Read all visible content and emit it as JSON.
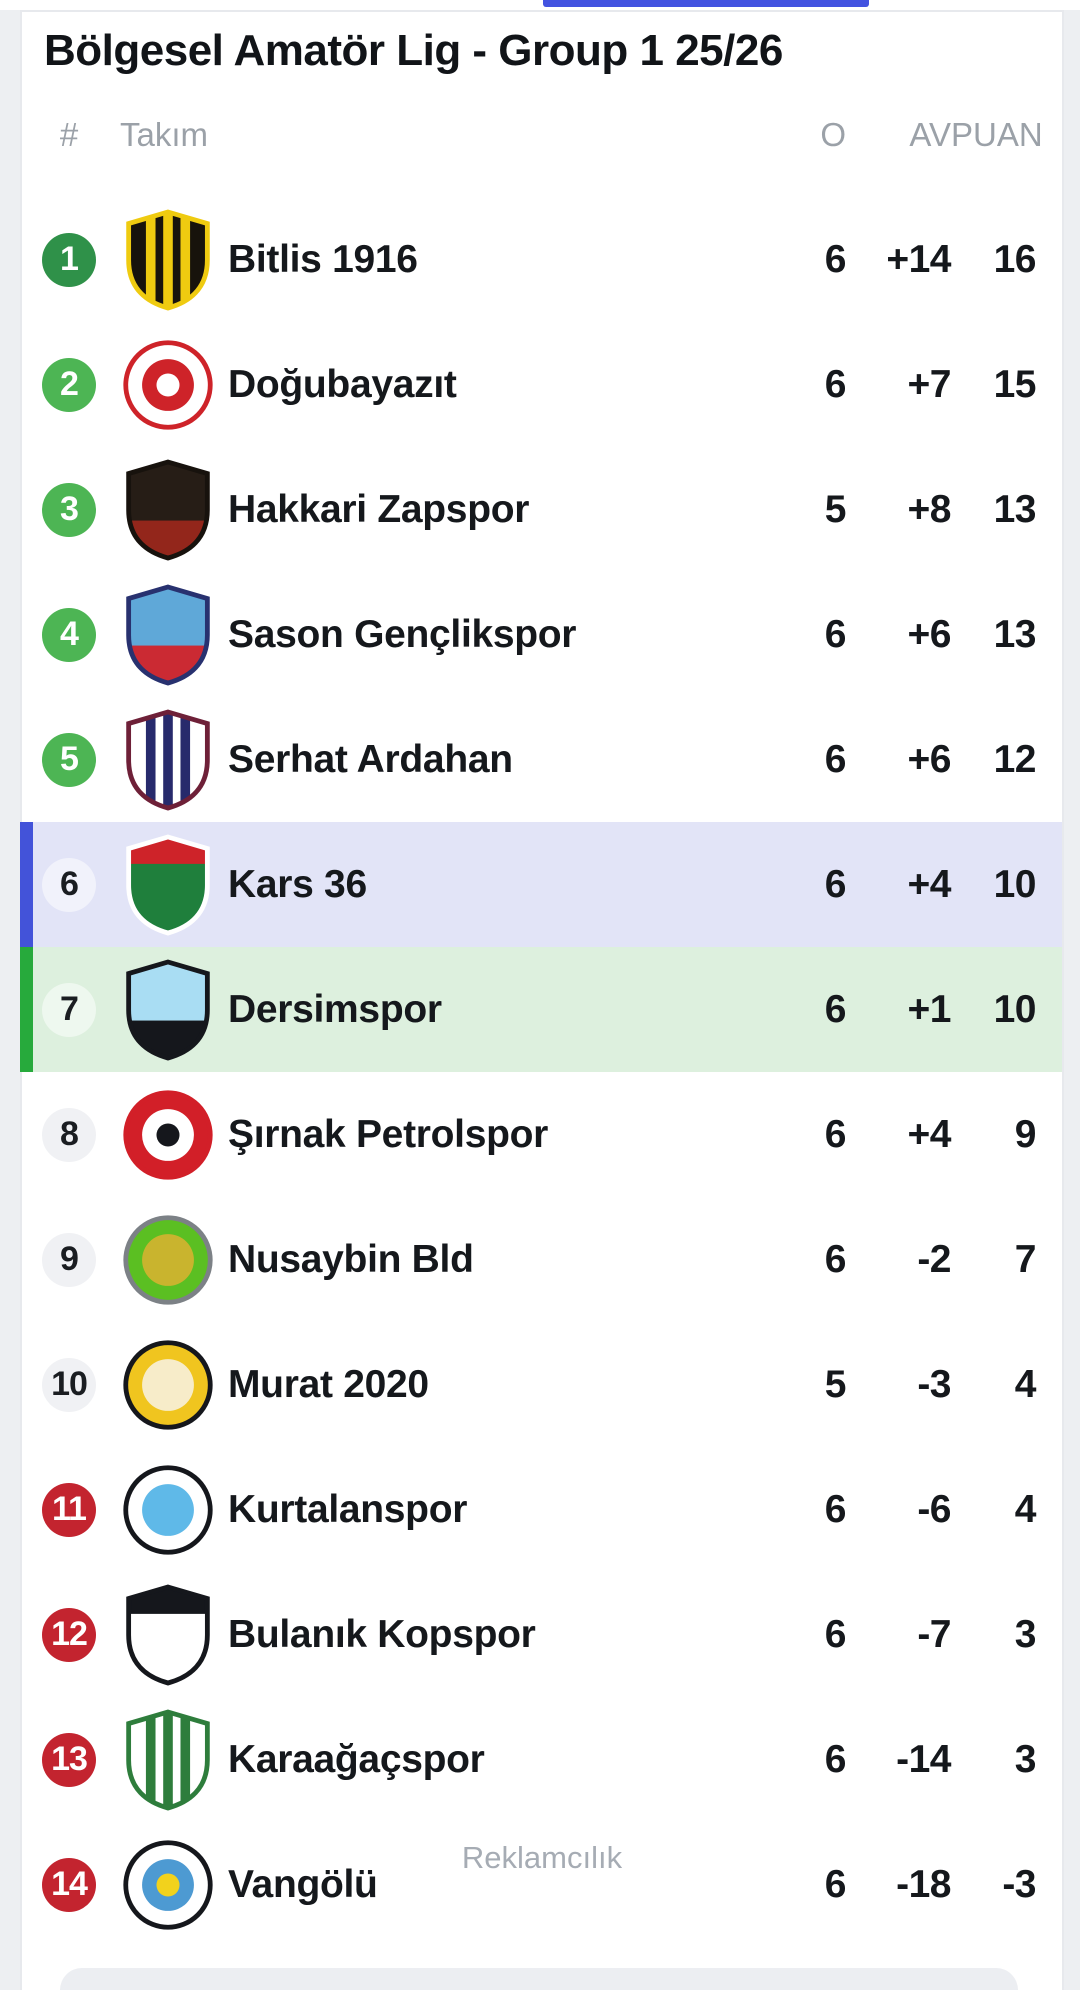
{
  "header": {
    "title": "Bölgesel Amatör Lig - Group 1 25/26"
  },
  "table": {
    "columns": {
      "position": "#",
      "team": "Takım",
      "played": "O",
      "diff": "AV",
      "points": "PUAN"
    },
    "watermark": "Reklamcılık",
    "rows": [
      {
        "pos": "1",
        "name": "Bitlis 1916",
        "played": "6",
        "diff": "+14",
        "points": "16",
        "zone": "champion",
        "logo": {
          "icon": "bitlis-1916-crest-icon",
          "shape": "shield",
          "bg": "#17130C",
          "border": "#EFCB10",
          "stripes": "#EFCB10"
        }
      },
      {
        "pos": "2",
        "name": "Doğubayazıt",
        "played": "6",
        "diff": "+7",
        "points": "15",
        "zone": "promotion",
        "logo": {
          "icon": "dogubayazit-crest-icon",
          "shape": "circle",
          "bg": "#FFFFFF",
          "border": "#CE2329",
          "inner": "#CE2329",
          "detail": "#FFFFFF"
        }
      },
      {
        "pos": "3",
        "name": "Hakkari Zapspor",
        "played": "5",
        "diff": "+8",
        "points": "13",
        "zone": "promotion",
        "logo": {
          "icon": "hakkari-zapspor-crest-icon",
          "shape": "shield",
          "bg": "#261D16",
          "border": "#17120D",
          "band_bottom": "#93261B"
        }
      },
      {
        "pos": "4",
        "name": "Sason Gençlikspor",
        "played": "6",
        "diff": "+6",
        "points": "13",
        "zone": "promotion",
        "logo": {
          "icon": "sason-genclikspor-crest-icon",
          "shape": "shield",
          "bg": "#5FA8D8",
          "border": "#28316F",
          "band_bottom": "#CB2A33"
        }
      },
      {
        "pos": "5",
        "name": "Serhat Ardahan",
        "played": "6",
        "diff": "+6",
        "points": "12",
        "zone": "promotion",
        "logo": {
          "icon": "serhat-ardahan-crest-icon",
          "shape": "shield",
          "bg": "#FFFFFF",
          "border": "#6E2038",
          "stripes": "#272A6C"
        }
      },
      {
        "pos": "6",
        "name": "Kars 36",
        "played": "6",
        "diff": "+4",
        "points": "10",
        "zone": "neutral",
        "highlight": "blue",
        "logo": {
          "icon": "kars-36-crest-icon",
          "shape": "shield",
          "bg": "#1F7F3C",
          "border": "#FFFFFF",
          "band_top": "#CE2329"
        }
      },
      {
        "pos": "7",
        "name": "Dersimspor",
        "played": "6",
        "diff": "+1",
        "points": "10",
        "zone": "neutral",
        "highlight": "green",
        "logo": {
          "icon": "dersimspor-crest-icon",
          "shape": "shield",
          "bg": "#A9DDF3",
          "border": "#15171C",
          "band_bottom": "#15171C"
        }
      },
      {
        "pos": "8",
        "name": "Şırnak Petrolspor",
        "played": "6",
        "diff": "+4",
        "points": "9",
        "zone": "neutral",
        "logo": {
          "icon": "sirnak-petrolspor-crest-icon",
          "shape": "circle",
          "bg": "#D21F28",
          "border": "#D21F28",
          "inner": "#FFFFFF",
          "detail": "#15171C"
        }
      },
      {
        "pos": "9",
        "name": "Nusaybin Bld",
        "played": "6",
        "diff": "-2",
        "points": "7",
        "zone": "neutral",
        "logo": {
          "icon": "nusaybin-bld-crest-icon",
          "shape": "circle",
          "bg": "#5BBF22",
          "border": "#7C8186",
          "inner": "#C9B42E"
        }
      },
      {
        "pos": "10",
        "name": "Murat 2020",
        "played": "5",
        "diff": "-3",
        "points": "4",
        "zone": "neutral",
        "logo": {
          "icon": "murat-2020-crest-icon",
          "shape": "circle",
          "bg": "#F0C51F",
          "border": "#15171C",
          "inner": "#F7ECC9"
        }
      },
      {
        "pos": "11",
        "name": "Kurtalanspor",
        "played": "6",
        "diff": "-6",
        "points": "4",
        "zone": "relegation",
        "logo": {
          "icon": "kurtalanspor-crest-icon",
          "shape": "circle",
          "bg": "#FFFFFF",
          "border": "#15171C",
          "inner": "#5FB9E8"
        }
      },
      {
        "pos": "12",
        "name": "Bulanık Kopspor",
        "played": "6",
        "diff": "-7",
        "points": "3",
        "zone": "relegation",
        "logo": {
          "icon": "bulanik-kopspor-crest-icon",
          "shape": "shield",
          "bg": "#FFFFFF",
          "border": "#15171C",
          "band_top": "#15171C"
        }
      },
      {
        "pos": "13",
        "name": "Karaağaçspor",
        "played": "6",
        "diff": "-14",
        "points": "3",
        "zone": "relegation",
        "logo": {
          "icon": "karaagacspor-crest-icon",
          "shape": "shield",
          "bg": "#FFFFFF",
          "border": "#2E7D3C",
          "stripes": "#2E7D3C"
        }
      },
      {
        "pos": "14",
        "name": "Vangölü",
        "played": "6",
        "diff": "-18",
        "points": "-3",
        "zone": "relegation",
        "logo": {
          "icon": "vangolu-crest-icon",
          "shape": "circle",
          "bg": "#FFFFFF",
          "border": "#15171C",
          "inner": "#4D9AD2",
          "detail": "#F2D21C"
        }
      }
    ]
  },
  "colors": {
    "accent_blue": "#4353E0",
    "zones": {
      "champion": "#2F9149",
      "promotion": "#4DB554",
      "neutral": "#F0F1F4",
      "relegation": "#C3242F"
    },
    "zone_text_light": "#FFFFFF",
    "zone_text_dark": "#1A1D21",
    "badge_on_highlight": "rgba(255,255,255,0.5)",
    "highlight_blue": {
      "bg": "#E2E4F7",
      "border": "#4353D9"
    },
    "highlight_green": {
      "bg": "#DDF0DE",
      "border": "#27AA3C"
    }
  }
}
